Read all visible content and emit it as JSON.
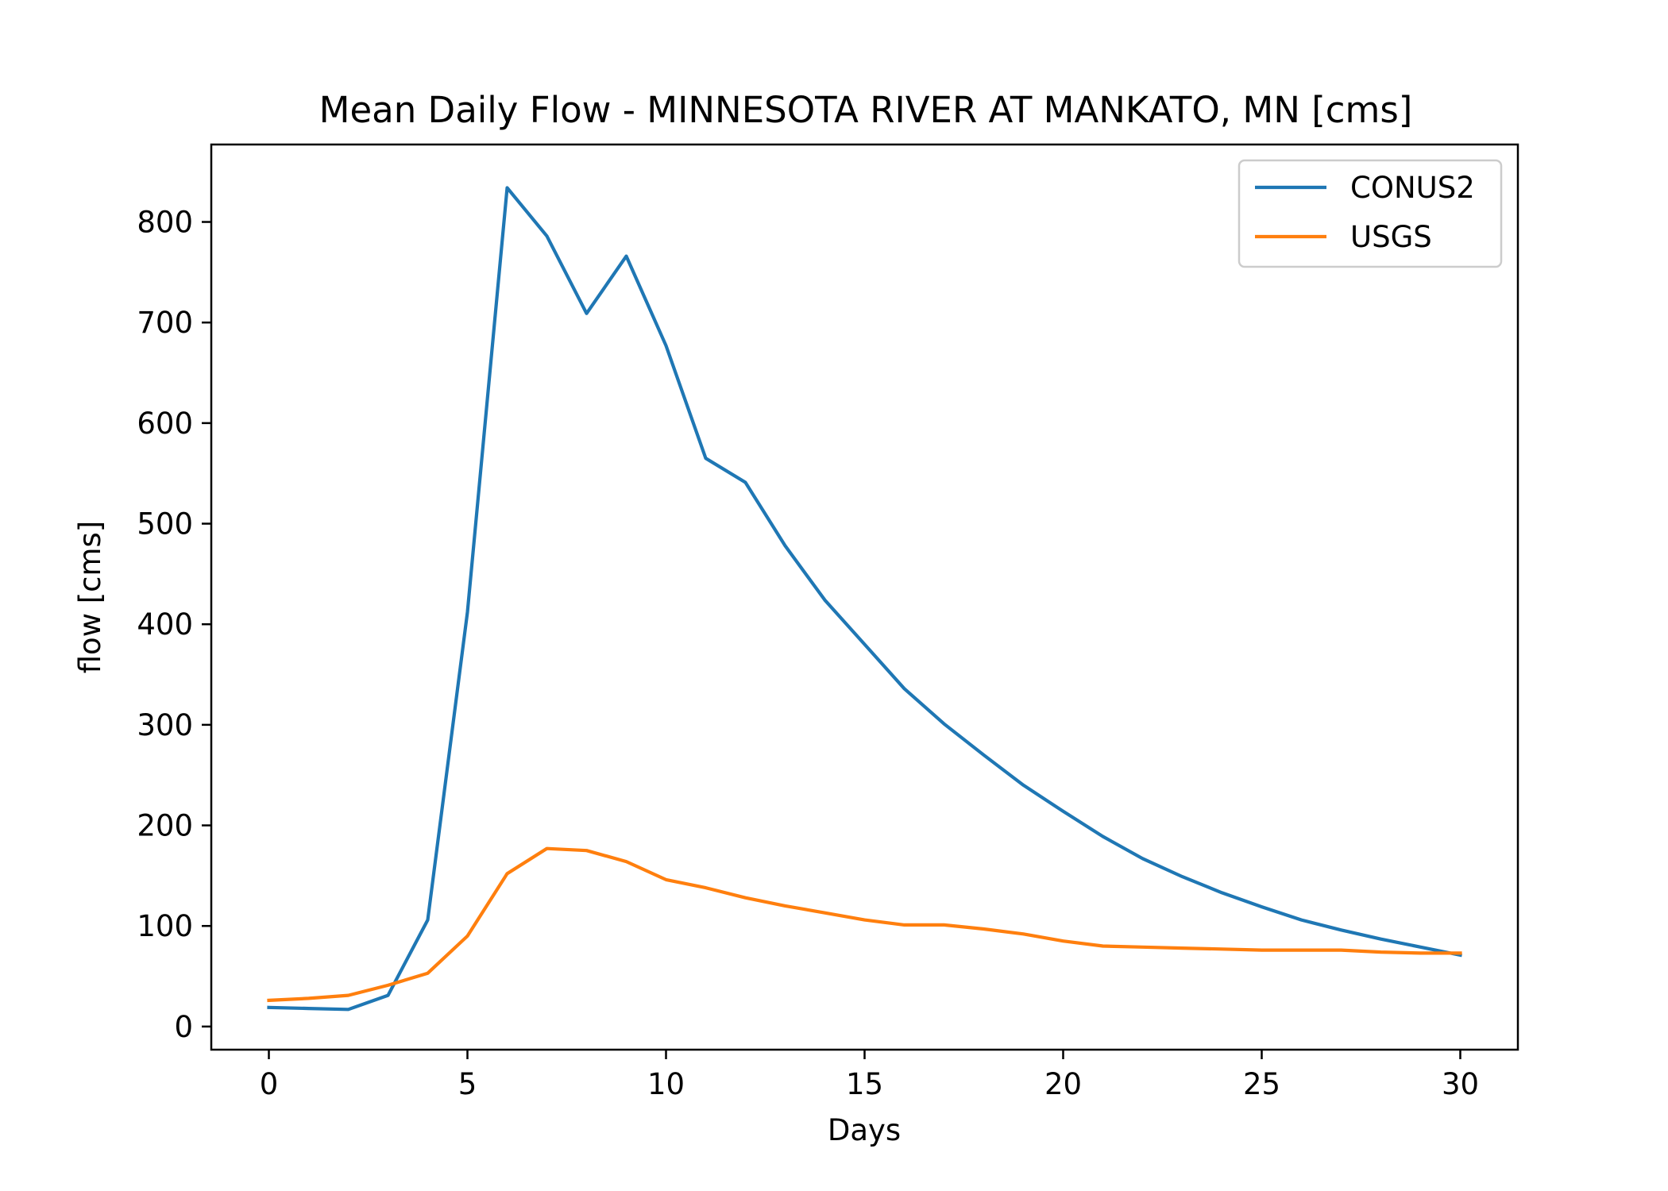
{
  "chart_data": {
    "type": "line",
    "title": "Mean Daily Flow - MINNESOTA RIVER AT MANKATO, MN [cms]",
    "xlabel": "Days",
    "ylabel": "flow [cms]",
    "xlim": [
      -1.45,
      31.45
    ],
    "ylim": [
      -23,
      877
    ],
    "xticks": [
      0,
      5,
      10,
      15,
      20,
      25,
      30
    ],
    "yticks": [
      0,
      100,
      200,
      300,
      400,
      500,
      600,
      700,
      800
    ],
    "grid": false,
    "legend_position": "upper right",
    "x": [
      0,
      1,
      2,
      3,
      4,
      5,
      6,
      7,
      8,
      9,
      10,
      11,
      12,
      13,
      14,
      15,
      16,
      17,
      18,
      19,
      20,
      21,
      22,
      23,
      24,
      25,
      26,
      27,
      28,
      29,
      30
    ],
    "series": [
      {
        "name": "CONUS2",
        "color": "#1f77b4",
        "values": [
          19,
          18,
          17,
          31,
          106,
          412,
          834,
          786,
          709,
          766,
          677,
          565,
          541,
          478,
          424,
          380,
          336,
          301,
          270,
          240,
          214,
          189,
          167,
          149,
          133,
          119,
          106,
          96,
          87,
          79,
          71
        ]
      },
      {
        "name": "USGS",
        "color": "#ff7f0e",
        "values": [
          26,
          28,
          31,
          41,
          53,
          90,
          152,
          177,
          175,
          164,
          146,
          138,
          128,
          120,
          113,
          106,
          101,
          101,
          97,
          92,
          85,
          80,
          79,
          78,
          77,
          76,
          76,
          76,
          74,
          73,
          73
        ]
      }
    ]
  }
}
